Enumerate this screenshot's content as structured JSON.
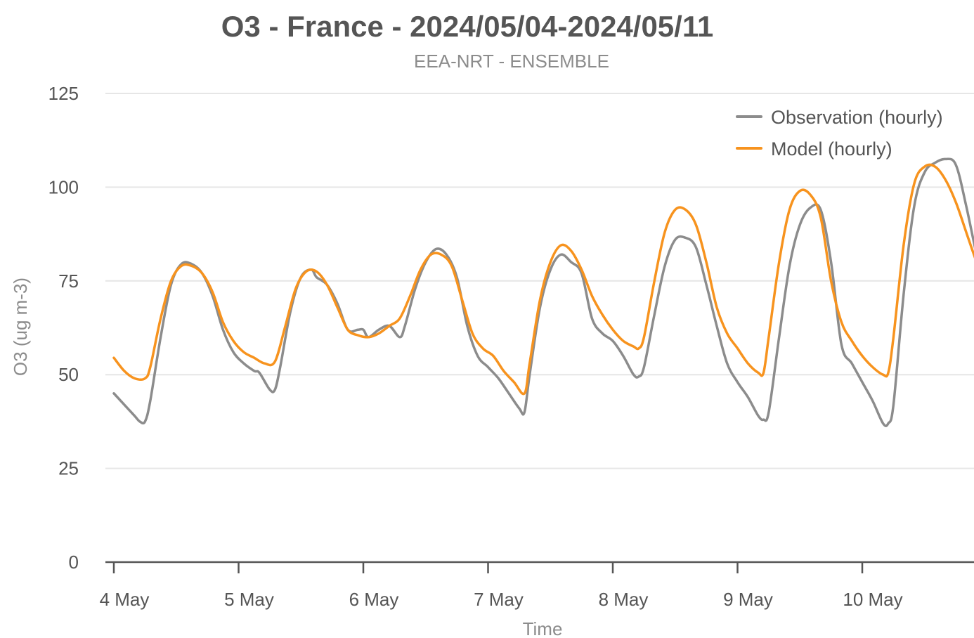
{
  "chart_data": {
    "type": "line",
    "title": "O3 - France - 2024/05/04-2024/05/11",
    "subtitle": "EEA-NRT - ENSEMBLE",
    "xlabel": "Time",
    "ylabel": "O3 (ug m-3)",
    "xlim": [
      "2024-05-04T00:00",
      "2024-05-10T23:00"
    ],
    "ylim": [
      0,
      125
    ],
    "yticks": [
      0,
      25,
      50,
      75,
      100,
      125
    ],
    "xticks": [
      {
        "x": "2024-05-04T00:00",
        "label": "4 May"
      },
      {
        "x": "2024-05-05T00:00",
        "label": "5 May"
      },
      {
        "x": "2024-05-06T00:00",
        "label": "6 May"
      },
      {
        "x": "2024-05-07T00:00",
        "label": "7 May"
      },
      {
        "x": "2024-05-08T00:00",
        "label": "8 May"
      },
      {
        "x": "2024-05-09T00:00",
        "label": "9 May"
      },
      {
        "x": "2024-05-10T00:00",
        "label": "10 May"
      }
    ],
    "grid": "horizontal",
    "legend_position": "top-right",
    "series": [
      {
        "name": "Observation (hourly)",
        "color": "#8c8c8c",
        "points": [
          [
            "2024-05-04T00:00",
            45
          ],
          [
            "2024-05-04T02:00",
            42
          ],
          [
            "2024-05-04T04:00",
            39
          ],
          [
            "2024-05-04T05:00",
            37.5
          ],
          [
            "2024-05-04T06:00",
            37.5
          ],
          [
            "2024-05-04T07:00",
            43
          ],
          [
            "2024-05-04T09:00",
            60
          ],
          [
            "2024-05-04T11:00",
            74
          ],
          [
            "2024-05-04T13:00",
            79.5
          ],
          [
            "2024-05-04T15:00",
            79.5
          ],
          [
            "2024-05-04T17:00",
            77
          ],
          [
            "2024-05-04T19:00",
            71
          ],
          [
            "2024-05-04T21:00",
            62
          ],
          [
            "2024-05-04T23:00",
            56
          ],
          [
            "2024-05-05T01:00",
            53
          ],
          [
            "2024-05-05T03:00",
            51
          ],
          [
            "2024-05-05T04:00",
            50.5
          ],
          [
            "2024-05-05T06:00",
            46
          ],
          [
            "2024-05-05T07:00",
            46
          ],
          [
            "2024-05-05T08:00",
            52
          ],
          [
            "2024-05-05T10:00",
            67
          ],
          [
            "2024-05-05T12:00",
            76
          ],
          [
            "2024-05-05T14:00",
            78
          ],
          [
            "2024-05-05T15:00",
            76
          ],
          [
            "2024-05-05T17:00",
            74
          ],
          [
            "2024-05-05T19:00",
            69
          ],
          [
            "2024-05-05T21:00",
            62
          ],
          [
            "2024-05-05T23:00",
            62
          ],
          [
            "2024-05-06T00:00",
            62
          ],
          [
            "2024-05-06T01:00",
            60
          ],
          [
            "2024-05-06T03:00",
            62
          ],
          [
            "2024-05-06T05:00",
            63
          ],
          [
            "2024-05-06T07:00",
            60
          ],
          [
            "2024-05-06T08:00",
            63
          ],
          [
            "2024-05-06T10:00",
            73
          ],
          [
            "2024-05-06T12:00",
            80
          ],
          [
            "2024-05-06T14:00",
            83.5
          ],
          [
            "2024-05-06T16:00",
            82
          ],
          [
            "2024-05-06T18:00",
            76
          ],
          [
            "2024-05-06T20:00",
            63
          ],
          [
            "2024-05-06T22:00",
            55
          ],
          [
            "2024-05-07T00:00",
            52
          ],
          [
            "2024-05-07T02:00",
            49
          ],
          [
            "2024-05-07T04:00",
            45
          ],
          [
            "2024-05-07T06:00",
            41
          ],
          [
            "2024-05-07T07:00",
            40
          ],
          [
            "2024-05-07T08:00",
            50
          ],
          [
            "2024-05-07T10:00",
            68
          ],
          [
            "2024-05-07T12:00",
            78
          ],
          [
            "2024-05-07T14:00",
            82
          ],
          [
            "2024-05-07T16:00",
            80
          ],
          [
            "2024-05-07T18:00",
            77
          ],
          [
            "2024-05-07T20:00",
            65
          ],
          [
            "2024-05-07T22:00",
            61
          ],
          [
            "2024-05-08T00:00",
            59
          ],
          [
            "2024-05-08T02:00",
            55
          ],
          [
            "2024-05-08T04:00",
            50
          ],
          [
            "2024-05-08T05:00",
            49.5
          ],
          [
            "2024-05-08T06:00",
            52
          ],
          [
            "2024-05-08T08:00",
            66
          ],
          [
            "2024-05-08T10:00",
            79
          ],
          [
            "2024-05-08T12:00",
            86
          ],
          [
            "2024-05-08T14:00",
            86.5
          ],
          [
            "2024-05-08T16:00",
            84
          ],
          [
            "2024-05-08T18:00",
            74
          ],
          [
            "2024-05-08T20:00",
            63
          ],
          [
            "2024-05-08T22:00",
            53
          ],
          [
            "2024-05-09T00:00",
            48
          ],
          [
            "2024-05-09T02:00",
            44
          ],
          [
            "2024-05-09T04:00",
            39
          ],
          [
            "2024-05-09T05:00",
            38
          ],
          [
            "2024-05-09T06:00",
            40
          ],
          [
            "2024-05-09T08:00",
            60
          ],
          [
            "2024-05-09T10:00",
            79
          ],
          [
            "2024-05-09T12:00",
            90
          ],
          [
            "2024-05-09T14:00",
            94.5
          ],
          [
            "2024-05-09T16:00",
            94
          ],
          [
            "2024-05-09T18:00",
            80
          ],
          [
            "2024-05-09T20:00",
            58
          ],
          [
            "2024-05-09T22:00",
            53
          ],
          [
            "2024-05-10T00:00",
            48
          ],
          [
            "2024-05-10T02:00",
            43
          ],
          [
            "2024-05-10T04:00",
            37
          ],
          [
            "2024-05-10T05:00",
            37
          ],
          [
            "2024-05-10T06:00",
            42
          ],
          [
            "2024-05-10T08:00",
            72
          ],
          [
            "2024-05-10T10:00",
            95
          ],
          [
            "2024-05-10T12:00",
            104
          ],
          [
            "2024-05-10T14:00",
            106.5
          ],
          [
            "2024-05-10T16:00",
            107.5
          ],
          [
            "2024-05-10T18:00",
            106
          ],
          [
            "2024-05-10T20:00",
            95
          ],
          [
            "2024-05-10T22:00",
            82
          ],
          [
            "2024-05-10T23:00",
            78
          ]
        ]
      },
      {
        "name": "Model (hourly)",
        "color": "#f7931e",
        "points": [
          [
            "2024-05-04T00:00",
            54.5
          ],
          [
            "2024-05-04T02:00",
            51
          ],
          [
            "2024-05-04T04:00",
            49
          ],
          [
            "2024-05-04T06:00",
            49
          ],
          [
            "2024-05-04T07:00",
            52
          ],
          [
            "2024-05-04T09:00",
            65
          ],
          [
            "2024-05-04T11:00",
            75
          ],
          [
            "2024-05-04T13:00",
            79
          ],
          [
            "2024-05-04T15:00",
            79
          ],
          [
            "2024-05-04T17:00",
            77
          ],
          [
            "2024-05-04T19:00",
            72
          ],
          [
            "2024-05-04T21:00",
            64
          ],
          [
            "2024-05-04T23:00",
            59
          ],
          [
            "2024-05-05T01:00",
            56
          ],
          [
            "2024-05-05T03:00",
            54.5
          ],
          [
            "2024-05-05T05:00",
            53
          ],
          [
            "2024-05-05T07:00",
            53.5
          ],
          [
            "2024-05-05T09:00",
            63
          ],
          [
            "2024-05-05T11:00",
            73
          ],
          [
            "2024-05-05T13:00",
            77.5
          ],
          [
            "2024-05-05T15:00",
            77.5
          ],
          [
            "2024-05-05T17:00",
            74
          ],
          [
            "2024-05-05T19:00",
            68
          ],
          [
            "2024-05-05T21:00",
            62
          ],
          [
            "2024-05-05T23:00",
            60.5
          ],
          [
            "2024-05-06T01:00",
            60
          ],
          [
            "2024-05-06T03:00",
            61
          ],
          [
            "2024-05-06T05:00",
            63
          ],
          [
            "2024-05-06T07:00",
            65
          ],
          [
            "2024-05-06T09:00",
            71
          ],
          [
            "2024-05-06T11:00",
            78
          ],
          [
            "2024-05-06T13:00",
            82
          ],
          [
            "2024-05-06T15:00",
            82
          ],
          [
            "2024-05-06T17:00",
            79
          ],
          [
            "2024-05-06T19:00",
            70
          ],
          [
            "2024-05-06T21:00",
            61
          ],
          [
            "2024-05-06T23:00",
            57
          ],
          [
            "2024-05-07T01:00",
            55
          ],
          [
            "2024-05-07T03:00",
            51
          ],
          [
            "2024-05-07T05:00",
            48
          ],
          [
            "2024-05-07T07:00",
            45
          ],
          [
            "2024-05-07T08:00",
            53
          ],
          [
            "2024-05-07T10:00",
            70
          ],
          [
            "2024-05-07T12:00",
            80
          ],
          [
            "2024-05-07T14:00",
            84.5
          ],
          [
            "2024-05-07T16:00",
            83
          ],
          [
            "2024-05-07T18:00",
            78
          ],
          [
            "2024-05-07T20:00",
            71
          ],
          [
            "2024-05-07T22:00",
            66
          ],
          [
            "2024-05-08T00:00",
            62
          ],
          [
            "2024-05-08T02:00",
            59
          ],
          [
            "2024-05-08T04:00",
            57.5
          ],
          [
            "2024-05-08T05:00",
            57
          ],
          [
            "2024-05-08T06:00",
            60
          ],
          [
            "2024-05-08T08:00",
            75
          ],
          [
            "2024-05-08T10:00",
            88
          ],
          [
            "2024-05-08T12:00",
            94
          ],
          [
            "2024-05-08T14:00",
            94
          ],
          [
            "2024-05-08T16:00",
            90
          ],
          [
            "2024-05-08T18:00",
            80
          ],
          [
            "2024-05-08T20:00",
            68
          ],
          [
            "2024-05-08T22:00",
            61
          ],
          [
            "2024-05-09T00:00",
            57
          ],
          [
            "2024-05-09T02:00",
            53
          ],
          [
            "2024-05-09T04:00",
            50.5
          ],
          [
            "2024-05-09T05:00",
            50.5
          ],
          [
            "2024-05-09T06:00",
            60
          ],
          [
            "2024-05-09T08:00",
            80
          ],
          [
            "2024-05-09T10:00",
            94
          ],
          [
            "2024-05-09T12:00",
            99
          ],
          [
            "2024-05-09T14:00",
            98
          ],
          [
            "2024-05-09T16:00",
            92
          ],
          [
            "2024-05-09T18:00",
            75
          ],
          [
            "2024-05-09T20:00",
            64
          ],
          [
            "2024-05-09T22:00",
            59
          ],
          [
            "2024-05-10T00:00",
            55
          ],
          [
            "2024-05-10T02:00",
            52
          ],
          [
            "2024-05-10T04:00",
            50
          ],
          [
            "2024-05-10T05:00",
            50.5
          ],
          [
            "2024-05-10T06:00",
            60
          ],
          [
            "2024-05-10T08:00",
            85
          ],
          [
            "2024-05-10T10:00",
            101
          ],
          [
            "2024-05-10T12:00",
            105.5
          ],
          [
            "2024-05-10T14:00",
            105.5
          ],
          [
            "2024-05-10T16:00",
            102
          ],
          [
            "2024-05-10T18:00",
            96
          ],
          [
            "2024-05-10T20:00",
            88
          ],
          [
            "2024-05-10T22:00",
            80
          ],
          [
            "2024-05-10T23:00",
            77
          ]
        ]
      }
    ]
  }
}
